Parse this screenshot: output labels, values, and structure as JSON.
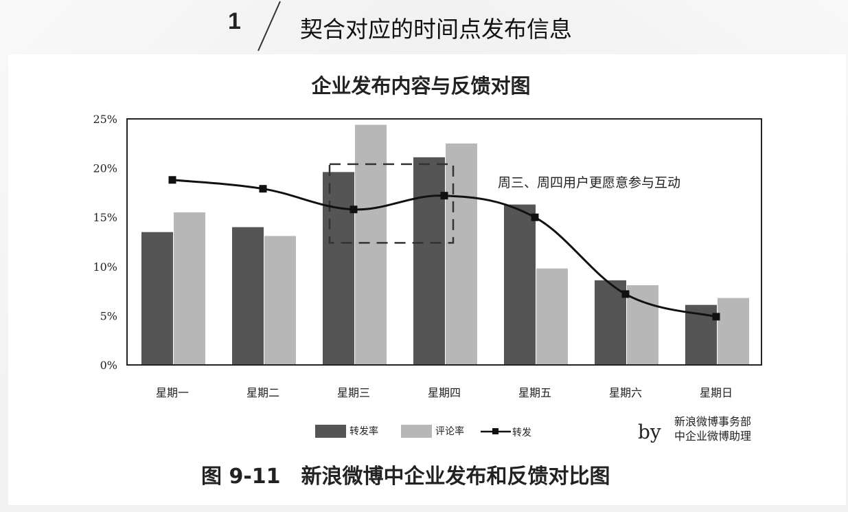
{
  "header": {
    "section_number": "1",
    "section_title": "契合对应的时间点发布信息"
  },
  "figure": {
    "caption": "图 9-11　新浪微博中企业发布和反馈对比图"
  },
  "credit": {
    "by": "by",
    "line1": "新浪微博事务部",
    "line2": "中企业微博助理"
  },
  "colors": {
    "repost_rate": "#555555",
    "comment_rate": "#b7b7b7",
    "repost_line": "#111111"
  },
  "chart_data": {
    "type": "bar",
    "title": "企业发布内容与反馈对图",
    "categories": [
      "星期一",
      "星期二",
      "星期三",
      "星期四",
      "星期五",
      "星期六",
      "星期日"
    ],
    "yticks": [
      "0%",
      "5%",
      "10%",
      "15%",
      "20%",
      "25%"
    ],
    "ylim": [
      0,
      25
    ],
    "grid": false,
    "legend_position": "bottom",
    "series": [
      {
        "name": "转发率",
        "kind": "bar",
        "values": [
          13.5,
          14.0,
          19.6,
          21.1,
          16.3,
          8.6,
          6.1
        ]
      },
      {
        "name": "评论率",
        "kind": "bar",
        "values": [
          15.5,
          13.1,
          24.4,
          22.5,
          9.8,
          8.1,
          6.8
        ]
      },
      {
        "name": "转发",
        "kind": "line",
        "values": [
          18.8,
          17.9,
          15.8,
          17.2,
          15.0,
          7.2,
          4.9
        ]
      }
    ],
    "annotation": {
      "text": "周三、周四用户更愿意参与互动",
      "box_categories": [
        "星期三",
        "星期四"
      ],
      "box_y_range": [
        12.4,
        20.4
      ]
    }
  }
}
